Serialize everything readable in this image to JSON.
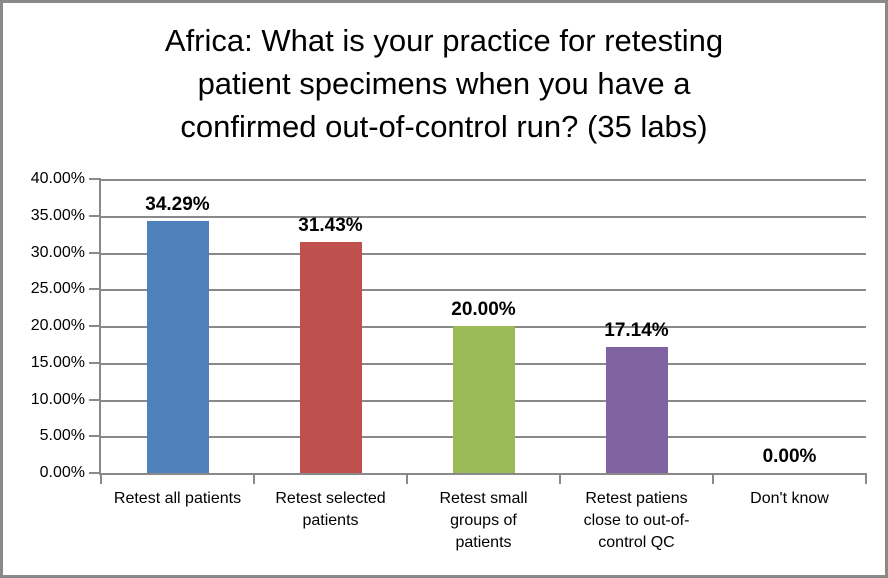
{
  "chart_data": {
    "type": "bar",
    "title": "Africa: What is your practice for retesting patient specimens when you have a confirmed out-of-control run? (35 labs)",
    "title_lines": [
      "Africa: What is your practice for retesting",
      "patient specimens when you have a",
      "confirmed out-of-control run? (35 labs)"
    ],
    "categories": [
      "Retest all patients",
      "Retest selected patients",
      "Retest small groups of patients",
      "Retest patiens close to out-of-control QC",
      "Don't know"
    ],
    "category_lines": [
      [
        "Retest all patients"
      ],
      [
        "Retest selected",
        "patients"
      ],
      [
        "Retest small",
        "groups of",
        "patients"
      ],
      [
        "Retest patiens",
        "close to out-of-",
        "control QC"
      ],
      [
        "Don't know"
      ]
    ],
    "values": [
      34.29,
      31.43,
      20.0,
      17.14,
      0.0
    ],
    "value_labels": [
      "34.29%",
      "31.43%",
      "20.00%",
      "17.14%",
      "0.00%"
    ],
    "bar_colors": [
      "#4F81BD",
      "#C0504D",
      "#9BBB59",
      "#8064A2",
      null
    ],
    "ylim": [
      0,
      40
    ],
    "ytick_step": 5,
    "ytick_labels": [
      "0.00%",
      "5.00%",
      "10.00%",
      "15.00%",
      "20.00%",
      "25.00%",
      "30.00%",
      "35.00%",
      "40.00%"
    ],
    "xlabel": "",
    "ylabel": "",
    "grid": true,
    "legend": "none",
    "colors": {
      "axis": "#898989",
      "gridline": "#898989",
      "border": "#898989",
      "background": "#FFFFFF",
      "text": "#000000"
    }
  }
}
